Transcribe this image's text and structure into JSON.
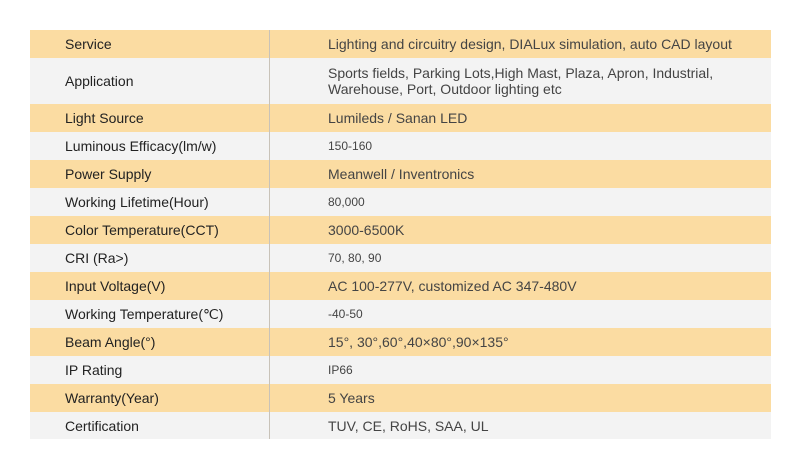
{
  "spec_table": {
    "rows": [
      {
        "label": "Service",
        "value": "Lighting and circuitry design, DIALux simulation, auto CAD layout"
      },
      {
        "label": "Application",
        "value": "Sports fields, Parking Lots,High Mast, Plaza, Apron, Industrial, Warehouse, Port, Outdoor lighting etc"
      },
      {
        "label": "Light Source",
        "value": "Lumileds / Sanan LED"
      },
      {
        "label": "Luminous Efficacy(lm/w)",
        "value": "150-160"
      },
      {
        "label": "Power Supply",
        "value": "Meanwell / Inventronics"
      },
      {
        "label": "Working Lifetime(Hour)",
        "value": "80,000"
      },
      {
        "label": "Color Temperature(CCT)",
        "value": "3000-6500K"
      },
      {
        "label": "CRI (Ra>)",
        "value": "70, 80, 90"
      },
      {
        "label": "Input Voltage(V)",
        "value": "AC 100-277V, customized AC 347-480V"
      },
      {
        "label": "Working Temperature(℃)",
        "value": "-40-50"
      },
      {
        "label": "Beam Angle(°)",
        "value": "15°, 30°,60°,40×80°,90×135°"
      },
      {
        "label": "IP Rating",
        "value": "IP66"
      },
      {
        "label": "Warranty(Year)",
        "value": "5 Years"
      },
      {
        "label": "Certification",
        "value": "TUV, CE, RoHS, SAA, UL"
      }
    ],
    "colors": {
      "odd_row": "#fbdca2",
      "even_row": "#f3f3f3"
    }
  }
}
